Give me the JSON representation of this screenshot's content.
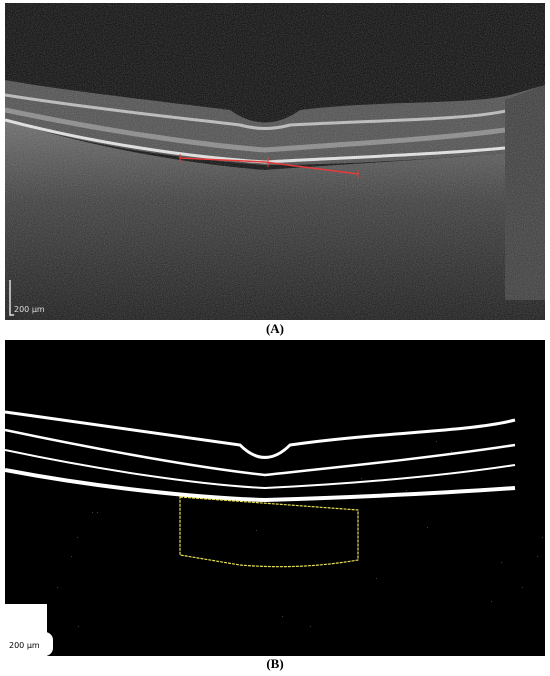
{
  "panels": [
    {
      "scale_label": "200 μm",
      "caption": "(A)"
    },
    {
      "scale_label": "200 μm",
      "caption": "(B)"
    }
  ]
}
